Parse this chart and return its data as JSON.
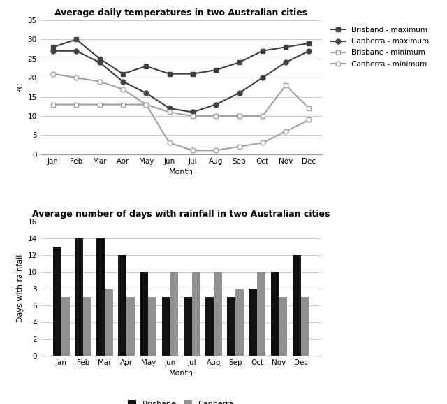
{
  "months": [
    "Jan",
    "Feb",
    "Mar",
    "Apr",
    "May",
    "Jun",
    "Jul",
    "Aug",
    "Sep",
    "Oct",
    "Nov",
    "Dec"
  ],
  "brisbane_max": [
    28,
    30,
    25,
    21,
    23,
    21,
    21,
    22,
    24,
    27,
    28,
    29
  ],
  "canberra_max": [
    27,
    27,
    24,
    19,
    16,
    12,
    11,
    13,
    16,
    20,
    24,
    27
  ],
  "brisbane_min": [
    13,
    13,
    13,
    13,
    13,
    11,
    10,
    10,
    10,
    10,
    18,
    12
  ],
  "canberra_min": [
    21,
    20,
    19,
    17,
    13,
    3,
    1,
    1,
    2,
    3,
    6,
    9
  ],
  "temp_title": "Average daily temperatures in two Australian cities",
  "temp_ylabel": "°C",
  "temp_xlabel": "Month",
  "temp_ylim": [
    0,
    35
  ],
  "temp_yticks": [
    0,
    5,
    10,
    15,
    20,
    25,
    30,
    35
  ],
  "legend_brisbane_max": "Brisband - maximum",
  "legend_canberra_max": "Canberra - maximum",
  "legend_brisbane_min": "Brisbane - minimum",
  "legend_canberra_min": "Canberra - minimum",
  "color_dark": "#404040",
  "color_light": "#a0a0a0",
  "brisbane_rainfall": [
    13,
    14,
    14,
    12,
    10,
    7,
    7,
    7,
    7,
    8,
    10,
    12
  ],
  "canberra_rainfall": [
    7,
    7,
    8,
    7,
    7,
    10,
    10,
    10,
    8,
    10,
    7,
    7
  ],
  "rain_title": "Average number of days with rainfall in two Australian cities",
  "rain_ylabel": "Days with rainfall",
  "rain_xlabel": "Month",
  "rain_ylim": [
    0,
    16
  ],
  "rain_yticks": [
    0,
    2,
    4,
    6,
    8,
    10,
    12,
    14,
    16
  ],
  "bar_color_brisbane": "#111111",
  "bar_color_canberra": "#909090",
  "legend_brisbane_bar": "Brisbane",
  "legend_canberra_bar": "Canberra"
}
